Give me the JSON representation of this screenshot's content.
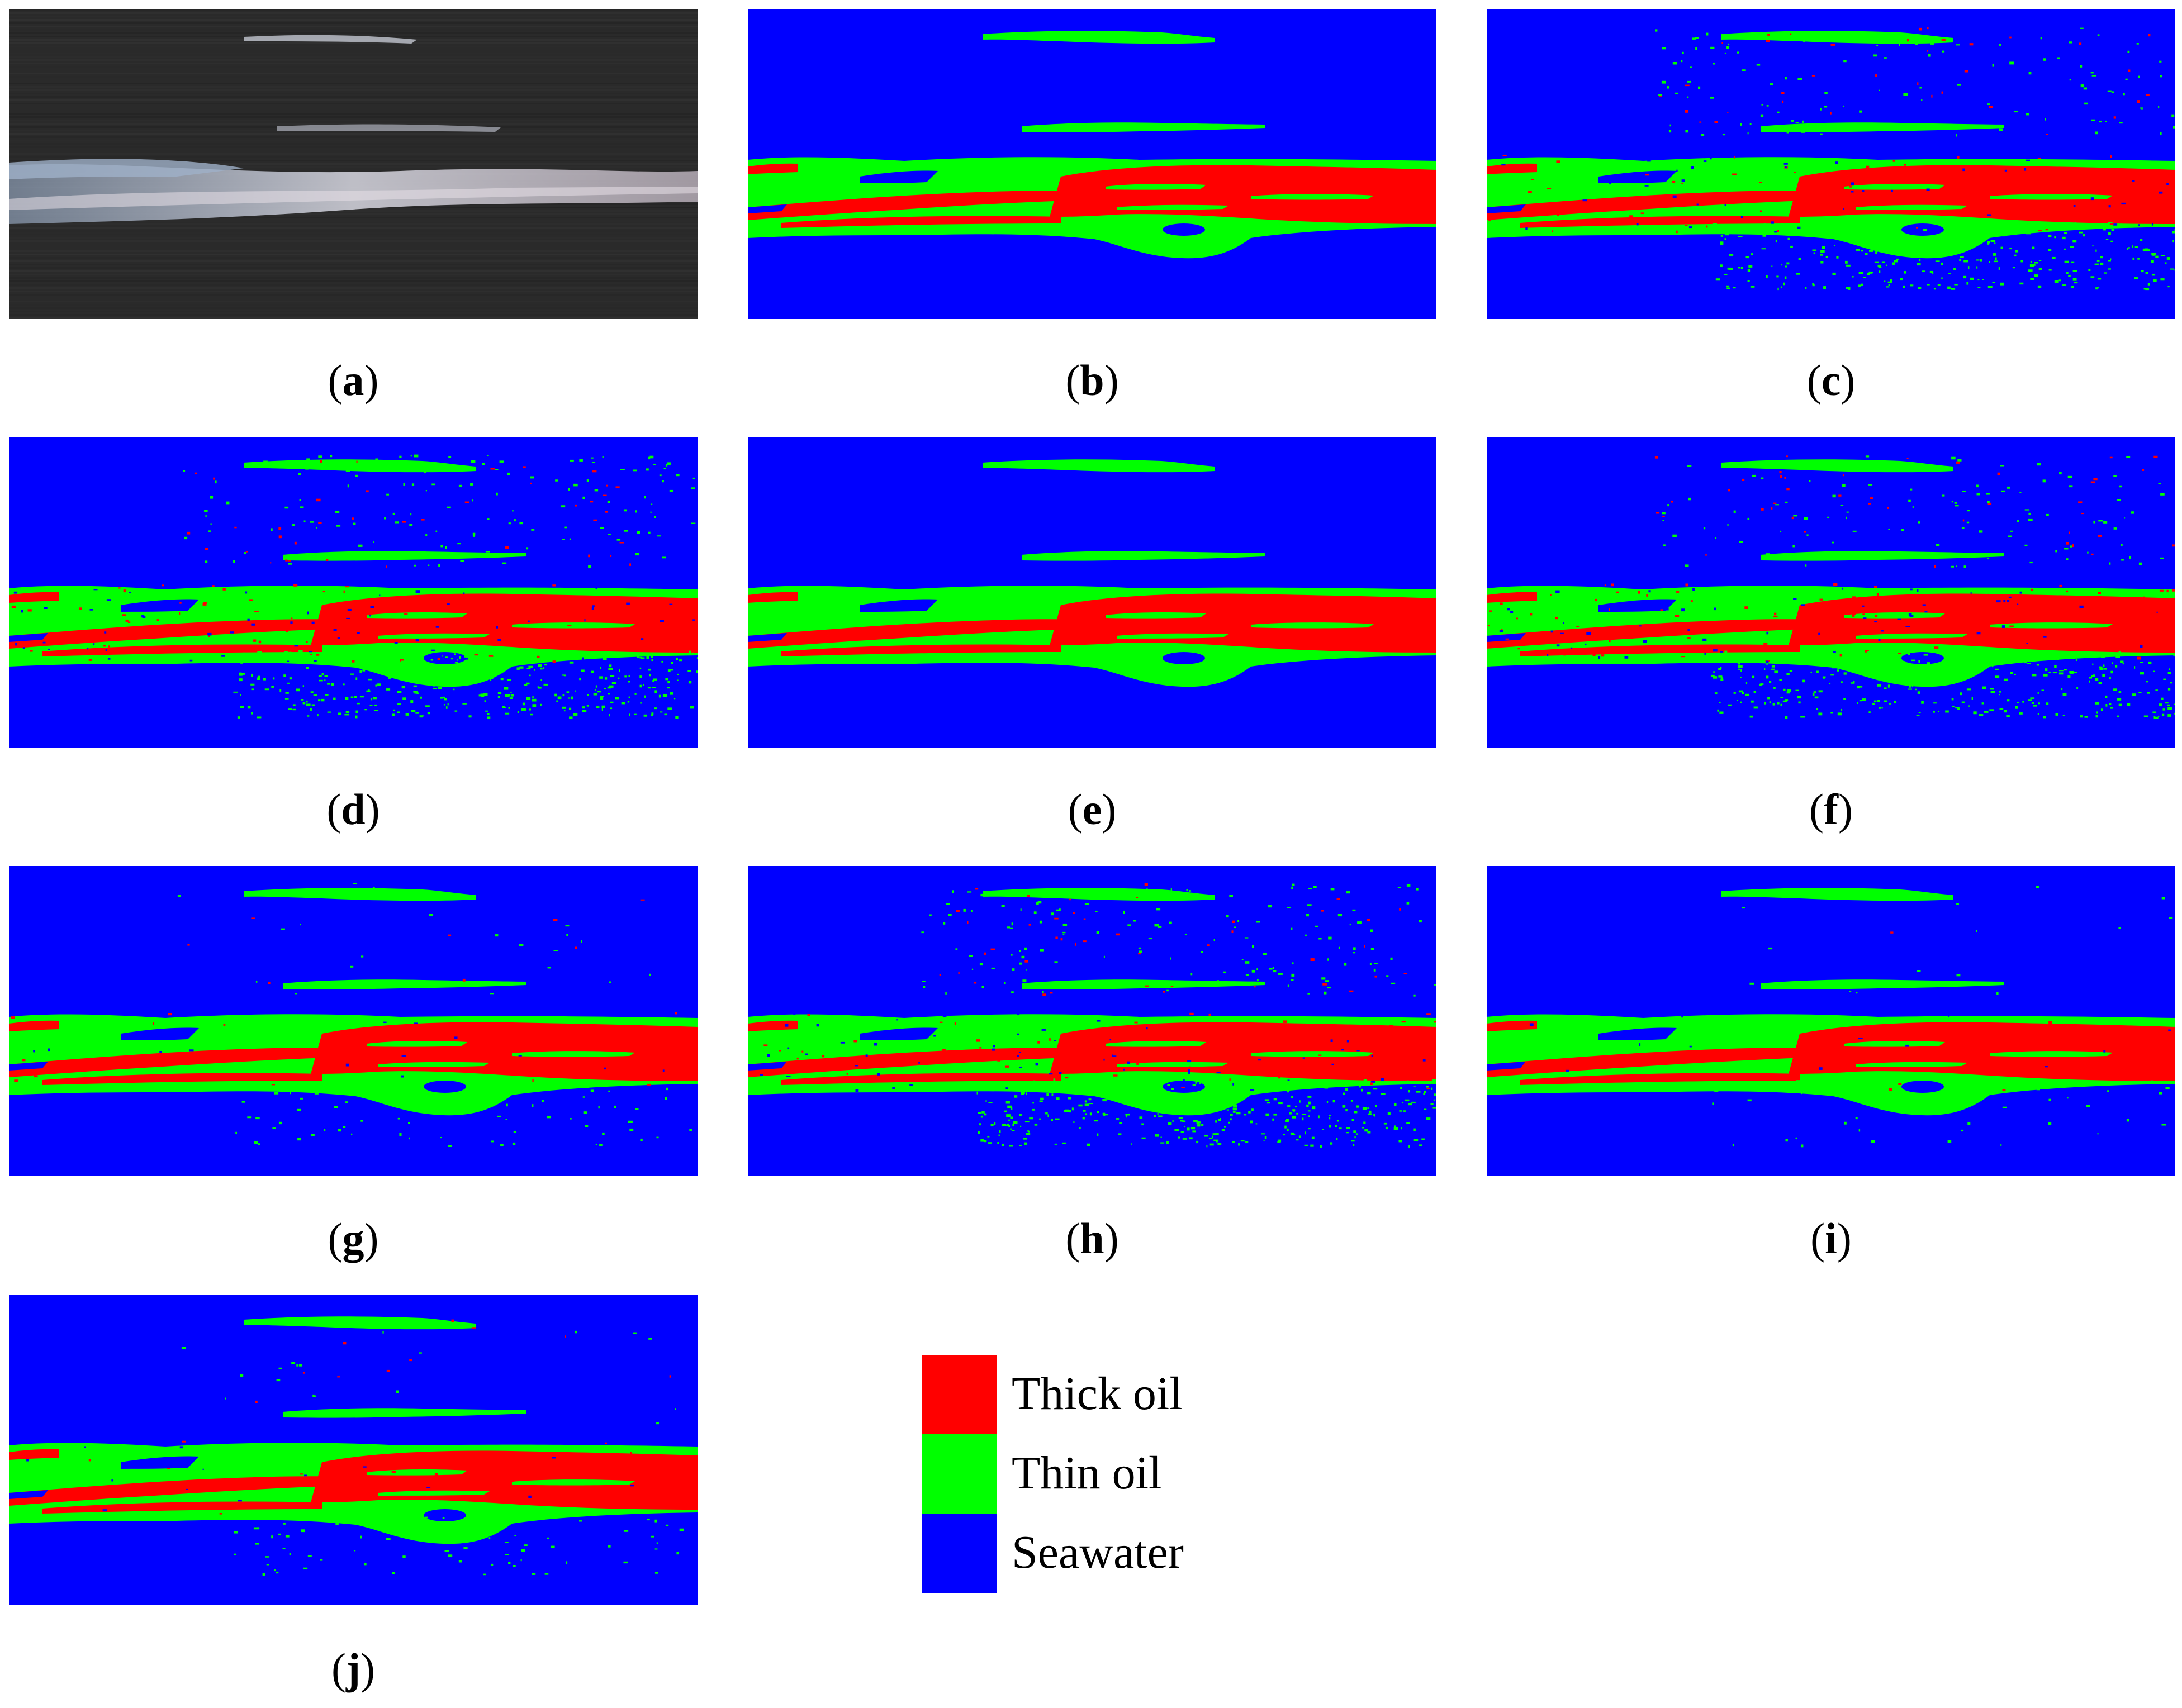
{
  "colors": {
    "thick_oil": "#ff0000",
    "thin_oil": "#00ff00",
    "seawater": "#0000ff",
    "photo_sea": "#2a2a2a",
    "photo_slick": "#cfcfd8"
  },
  "panels": [
    {
      "id": "a",
      "kind": "photo",
      "caption": "a"
    },
    {
      "id": "b",
      "kind": "classification",
      "caption": "b",
      "noise": 0.0
    },
    {
      "id": "c",
      "kind": "classification",
      "caption": "c",
      "noise": 0.8
    },
    {
      "id": "d",
      "kind": "classification",
      "caption": "d",
      "noise": 1.0
    },
    {
      "id": "e",
      "kind": "classification",
      "caption": "e",
      "noise": 0.0
    },
    {
      "id": "f",
      "kind": "classification",
      "caption": "f",
      "noise": 0.9
    },
    {
      "id": "g",
      "kind": "classification",
      "caption": "g",
      "noise": 0.2
    },
    {
      "id": "h",
      "kind": "classification",
      "caption": "h",
      "noise": 1.0
    },
    {
      "id": "i",
      "kind": "classification",
      "caption": "i",
      "noise": 0.1
    },
    {
      "id": "j",
      "kind": "classification",
      "caption": "j",
      "noise": 0.2
    }
  ],
  "captions": {
    "a": "a",
    "b": "b",
    "c": "c",
    "d": "d",
    "e": "e",
    "f": "f",
    "g": "g",
    "h": "h",
    "i": "i",
    "j": "j"
  },
  "legend": {
    "items": [
      {
        "label": "Thick oil",
        "color": "#ff0000"
      },
      {
        "label": "Thin oil",
        "color": "#00ff00"
      },
      {
        "label": "Seawater",
        "color": "#0000ff"
      }
    ]
  }
}
